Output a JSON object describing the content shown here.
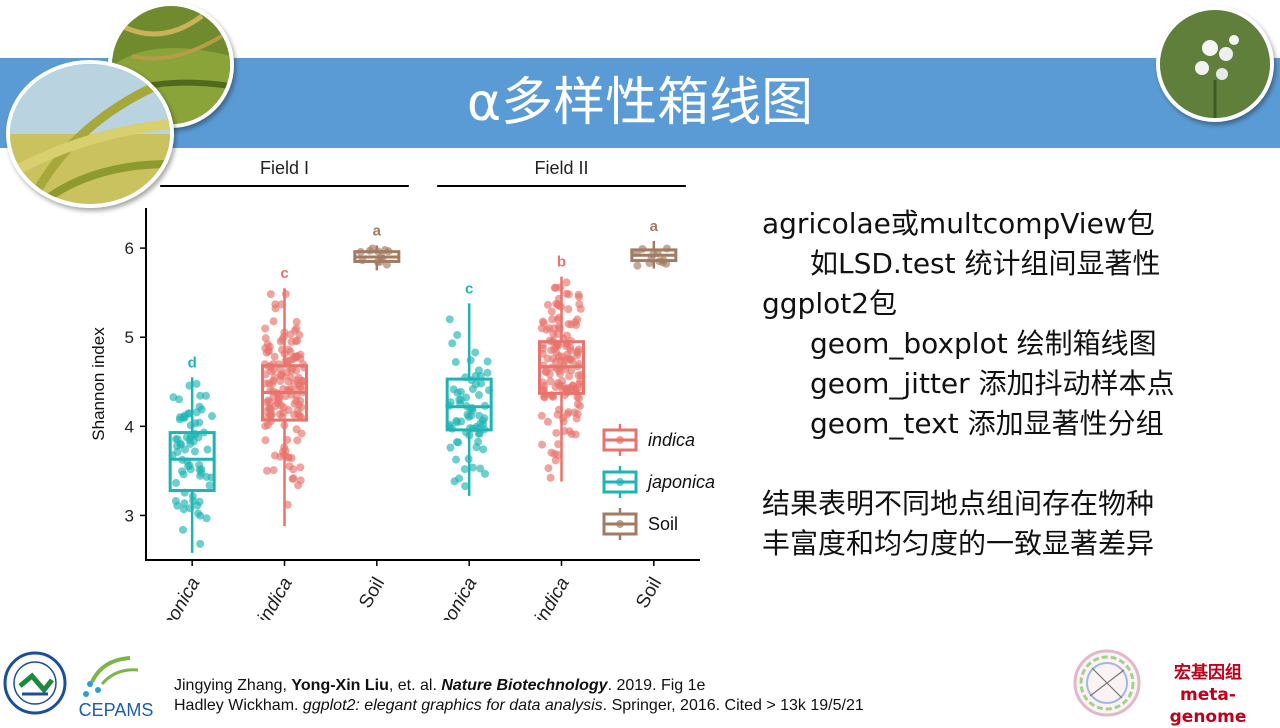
{
  "slide": {
    "title": "α多样性箱线图",
    "notes": [
      {
        "text": "agricolae或multcompView包",
        "indent": false
      },
      {
        "text": "如LSD.test 统计组间显著性",
        "indent": true
      },
      {
        "text": "ggplot2包",
        "indent": false
      },
      {
        "text": "geom_boxplot  绘制箱线图",
        "indent": true
      },
      {
        "text": "geom_jitter 添加抖动样本点",
        "indent": true
      },
      {
        "text": "geom_text  添加显著性分组",
        "indent": true
      },
      {
        "text": "",
        "indent": false
      },
      {
        "text": "结果表明不同地点组间存在物种",
        "indent": false
      },
      {
        "text": "丰富度和均匀度的一致显著差异",
        "indent": false
      }
    ],
    "citation": {
      "line1_authors_a": "Jingying Zhang, ",
      "line1_author_bold": "Yong-Xin Liu",
      "line1_authors_b": ", et. al. ",
      "line1_journal": "Nature Biotechnology",
      "line1_rest": ". 2019. Fig 1e",
      "line2_author": "Hadley Wickham. ",
      "line2_book": "ggplot2: elegant graphics for data analysis",
      "line2_rest": ". Springer, 2016. Cited > 13k 19/5/21"
    },
    "brand": {
      "cn": "宏基因组",
      "en": "meta-genome"
    },
    "logo_left_text": "CEPAMS"
  },
  "chart_data": {
    "type": "box",
    "ylabel": "Shannon index",
    "ylim": [
      2.5,
      6.45
    ],
    "yticks": [
      3,
      4,
      5,
      6
    ],
    "facets": [
      "Field I",
      "Field II"
    ],
    "categories": [
      "japonica",
      "indica",
      "Soil",
      "japonica",
      "indica",
      "Soil"
    ],
    "colors": {
      "indica": "#e8736c",
      "japonica": "#1fb4b4",
      "Soil": "#a27b62"
    },
    "legend": {
      "position": "right",
      "entries": [
        "indica",
        "japonica",
        "Soil"
      ]
    },
    "boxes": [
      {
        "facet": "Field I",
        "group": "japonica",
        "min": 2.58,
        "q1": 3.28,
        "median": 3.63,
        "q3": 3.93,
        "max": 4.55,
        "letter": "d"
      },
      {
        "facet": "Field I",
        "group": "indica",
        "min": 2.88,
        "q1": 4.07,
        "median": 4.38,
        "q3": 4.68,
        "max": 5.55,
        "letter": "c"
      },
      {
        "facet": "Field I",
        "group": "Soil",
        "min": 5.75,
        "q1": 5.85,
        "median": 5.9,
        "q3": 5.96,
        "max": 6.03,
        "letter": "a"
      },
      {
        "facet": "Field II",
        "group": "japonica",
        "min": 3.22,
        "q1": 3.96,
        "median": 4.22,
        "q3": 4.53,
        "max": 5.38,
        "letter": "c"
      },
      {
        "facet": "Field II",
        "group": "indica",
        "min": 3.38,
        "q1": 4.37,
        "median": 4.67,
        "q3": 4.95,
        "max": 5.68,
        "letter": "b"
      },
      {
        "facet": "Field II",
        "group": "Soil",
        "min": 5.77,
        "q1": 5.86,
        "median": 5.92,
        "q3": 5.98,
        "max": 6.08,
        "letter": "a"
      }
    ]
  }
}
